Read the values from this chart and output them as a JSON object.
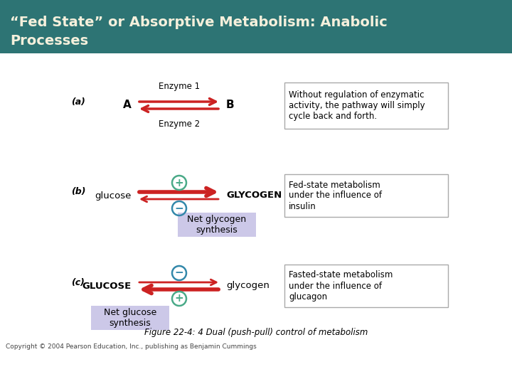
{
  "title_line1": "“Fed State” or Absorptive Metabolism: Anabolic",
  "title_line2": "Processes",
  "title_bg": "#2d7474",
  "title_fg": "#f5f0dc",
  "bg_color": "#ffffff",
  "arrow_color": "#cc2222",
  "circle_plus_color": "#4aaa88",
  "circle_minus_color": "#3388aa",
  "box_edge_color": "#aaaaaa",
  "caption": "Figure 22-4: 4 Dual (push-pull) control of metabolism",
  "copyright": "Copyright © 2004 Pearson Education, Inc., publishing as Benjamin Cummings",
  "panel_a": {
    "label": "(a)",
    "enzyme1": "Enzyme 1",
    "enzyme2": "Enzyme 2",
    "left": "A",
    "right": "B",
    "box_text": "Without regulation of enzymatic\nactivity, the pathway will simply\ncycle back and forth."
  },
  "panel_b": {
    "label": "(b)",
    "left": "glucose",
    "right": "GLYCOGEN",
    "box_text": "Fed-state metabolism\nunder the influence of\ninsulin",
    "sublabel": "Net glycogen\nsynthesis",
    "sublabel_bg": "#ccc8e8"
  },
  "panel_c": {
    "label": "(c)",
    "left": "GLUCOSE",
    "right": "glycogen",
    "box_text": "Fasted-state metabolism\nunder the influence of\nglucagon",
    "sublabel": "Net glucose\nsynthesis",
    "sublabel_bg": "#ccc8e8"
  }
}
